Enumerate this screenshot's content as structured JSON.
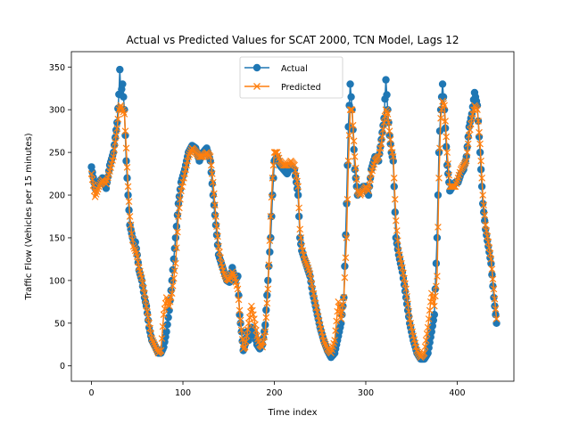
{
  "chart_data": {
    "type": "line",
    "title": "Actual vs Predicted Values for SCAT 2000, TCN Model, Lags 12",
    "xlabel": "Time index",
    "ylabel": "Traffic Flow (Vehicles per 15 minutes)",
    "xlim": [
      -22,
      462
    ],
    "ylim": [
      -18,
      368
    ],
    "xticks": [
      0,
      100,
      200,
      300,
      400
    ],
    "yticks": [
      0,
      50,
      100,
      150,
      200,
      250,
      300,
      350
    ],
    "grid": false,
    "legend_position": "top-center",
    "series": [
      {
        "name": "Actual",
        "color": "#1f77b4",
        "marker": "circle",
        "keyframes": [
          [
            0,
            233
          ],
          [
            4,
            208
          ],
          [
            8,
            215
          ],
          [
            12,
            220
          ],
          [
            16,
            208
          ],
          [
            20,
            235
          ],
          [
            24,
            250
          ],
          [
            28,
            285
          ],
          [
            30,
            318
          ],
          [
            31,
            347
          ],
          [
            32,
            318
          ],
          [
            34,
            330
          ],
          [
            36,
            300
          ],
          [
            38,
            240
          ],
          [
            40,
            200
          ],
          [
            42,
            165
          ],
          [
            44,
            155
          ],
          [
            46,
            145
          ],
          [
            48,
            145
          ],
          [
            50,
            130
          ],
          [
            52,
            112
          ],
          [
            55,
            100
          ],
          [
            58,
            80
          ],
          [
            60,
            70
          ],
          [
            63,
            45
          ],
          [
            66,
            30
          ],
          [
            70,
            22
          ],
          [
            73,
            15
          ],
          [
            76,
            15
          ],
          [
            79,
            22
          ],
          [
            82,
            40
          ],
          [
            85,
            65
          ],
          [
            88,
            100
          ],
          [
            92,
            150
          ],
          [
            95,
            190
          ],
          [
            98,
            215
          ],
          [
            102,
            230
          ],
          [
            106,
            250
          ],
          [
            110,
            258
          ],
          [
            114,
            255
          ],
          [
            118,
            240
          ],
          [
            122,
            250
          ],
          [
            126,
            255
          ],
          [
            130,
            240
          ],
          [
            133,
            200
          ],
          [
            136,
            165
          ],
          [
            139,
            130
          ],
          [
            142,
            120
          ],
          [
            145,
            110
          ],
          [
            148,
            100
          ],
          [
            151,
            98
          ],
          [
            154,
            115
          ],
          [
            157,
            100
          ],
          [
            160,
            105
          ],
          [
            162,
            60
          ],
          [
            164,
            40
          ],
          [
            166,
            18
          ],
          [
            168,
            25
          ],
          [
            170,
            40
          ],
          [
            172,
            30
          ],
          [
            175,
            45
          ],
          [
            178,
            40
          ],
          [
            181,
            25
          ],
          [
            184,
            20
          ],
          [
            187,
            25
          ],
          [
            190,
            48
          ],
          [
            193,
            100
          ],
          [
            196,
            150
          ],
          [
            198,
            200
          ],
          [
            200,
            240
          ],
          [
            203,
            245
          ],
          [
            206,
            235
          ],
          [
            210,
            230
          ],
          [
            214,
            225
          ],
          [
            218,
            235
          ],
          [
            222,
            230
          ],
          [
            226,
            200
          ],
          [
            228,
            150
          ],
          [
            230,
            135
          ],
          [
            233,
            125
          ],
          [
            236,
            115
          ],
          [
            239,
            105
          ],
          [
            242,
            85
          ],
          [
            246,
            65
          ],
          [
            250,
            45
          ],
          [
            254,
            30
          ],
          [
            258,
            18
          ],
          [
            262,
            10
          ],
          [
            266,
            15
          ],
          [
            270,
            35
          ],
          [
            273,
            50
          ],
          [
            276,
            80
          ],
          [
            279,
            190
          ],
          [
            281,
            280
          ],
          [
            283,
            330
          ],
          [
            285,
            300
          ],
          [
            288,
            230
          ],
          [
            291,
            200
          ],
          [
            294,
            205
          ],
          [
            297,
            210
          ],
          [
            300,
            210
          ],
          [
            303,
            200
          ],
          [
            306,
            230
          ],
          [
            310,
            245
          ],
          [
            314,
            240
          ],
          [
            317,
            265
          ],
          [
            320,
            290
          ],
          [
            322,
            335
          ],
          [
            324,
            300
          ],
          [
            326,
            270
          ],
          [
            328,
            250
          ],
          [
            330,
            240
          ],
          [
            333,
            150
          ],
          [
            336,
            130
          ],
          [
            340,
            110
          ],
          [
            344,
            80
          ],
          [
            348,
            50
          ],
          [
            352,
            30
          ],
          [
            356,
            15
          ],
          [
            360,
            8
          ],
          [
            364,
            8
          ],
          [
            368,
            15
          ],
          [
            372,
            40
          ],
          [
            375,
            60
          ],
          [
            378,
            150
          ],
          [
            380,
            250
          ],
          [
            382,
            300
          ],
          [
            384,
            330
          ],
          [
            386,
            300
          ],
          [
            389,
            235
          ],
          [
            392,
            205
          ],
          [
            395,
            210
          ],
          [
            398,
            215
          ],
          [
            401,
            215
          ],
          [
            404,
            225
          ],
          [
            407,
            230
          ],
          [
            410,
            245
          ],
          [
            413,
            280
          ],
          [
            416,
            295
          ],
          [
            419,
            320
          ],
          [
            422,
            305
          ],
          [
            425,
            250
          ],
          [
            428,
            190
          ],
          [
            431,
            160
          ],
          [
            434,
            140
          ],
          [
            437,
            120
          ],
          [
            440,
            80
          ],
          [
            443,
            50
          ]
        ]
      },
      {
        "name": "Predicted",
        "color": "#ff7f0e",
        "marker": "x",
        "keyframes": [
          [
            0,
            225
          ],
          [
            4,
            198
          ],
          [
            8,
            210
          ],
          [
            12,
            218
          ],
          [
            16,
            213
          ],
          [
            20,
            228
          ],
          [
            24,
            245
          ],
          [
            28,
            278
          ],
          [
            30,
            300
          ],
          [
            32,
            305
          ],
          [
            34,
            300
          ],
          [
            36,
            295
          ],
          [
            38,
            255
          ],
          [
            40,
            210
          ],
          [
            42,
            175
          ],
          [
            44,
            155
          ],
          [
            46,
            140
          ],
          [
            48,
            135
          ],
          [
            50,
            128
          ],
          [
            52,
            115
          ],
          [
            55,
            103
          ],
          [
            58,
            85
          ],
          [
            60,
            70
          ],
          [
            63,
            50
          ],
          [
            66,
            32
          ],
          [
            70,
            22
          ],
          [
            73,
            15
          ],
          [
            76,
            18
          ],
          [
            79,
            60
          ],
          [
            82,
            80
          ],
          [
            85,
            70
          ],
          [
            88,
            85
          ],
          [
            92,
            120
          ],
          [
            95,
            175
          ],
          [
            98,
            205
          ],
          [
            102,
            225
          ],
          [
            106,
            245
          ],
          [
            110,
            255
          ],
          [
            114,
            250
          ],
          [
            118,
            245
          ],
          [
            122,
            245
          ],
          [
            126,
            250
          ],
          [
            130,
            245
          ],
          [
            133,
            215
          ],
          [
            136,
            175
          ],
          [
            139,
            140
          ],
          [
            142,
            120
          ],
          [
            145,
            108
          ],
          [
            148,
            102
          ],
          [
            151,
            100
          ],
          [
            154,
            110
          ],
          [
            157,
            102
          ],
          [
            160,
            90
          ],
          [
            162,
            65
          ],
          [
            164,
            42
          ],
          [
            166,
            20
          ],
          [
            168,
            22
          ],
          [
            170,
            35
          ],
          [
            172,
            50
          ],
          [
            175,
            70
          ],
          [
            178,
            55
          ],
          [
            181,
            35
          ],
          [
            184,
            25
          ],
          [
            187,
            22
          ],
          [
            190,
            40
          ],
          [
            193,
            90
          ],
          [
            196,
            175
          ],
          [
            198,
            220
          ],
          [
            200,
            250
          ],
          [
            203,
            250
          ],
          [
            206,
            240
          ],
          [
            210,
            235
          ],
          [
            214,
            235
          ],
          [
            218,
            240
          ],
          [
            222,
            235
          ],
          [
            226,
            210
          ],
          [
            228,
            160
          ],
          [
            230,
            140
          ],
          [
            233,
            125
          ],
          [
            236,
            118
          ],
          [
            239,
            108
          ],
          [
            242,
            90
          ],
          [
            246,
            68
          ],
          [
            250,
            48
          ],
          [
            254,
            30
          ],
          [
            258,
            20
          ],
          [
            262,
            15
          ],
          [
            266,
            30
          ],
          [
            270,
            75
          ],
          [
            273,
            55
          ],
          [
            276,
            80
          ],
          [
            279,
            150
          ],
          [
            281,
            240
          ],
          [
            283,
            300
          ],
          [
            285,
            300
          ],
          [
            288,
            245
          ],
          [
            291,
            205
          ],
          [
            294,
            200
          ],
          [
            297,
            205
          ],
          [
            300,
            210
          ],
          [
            303,
            205
          ],
          [
            306,
            225
          ],
          [
            310,
            240
          ],
          [
            314,
            245
          ],
          [
            317,
            260
          ],
          [
            320,
            285
          ],
          [
            322,
            300
          ],
          [
            324,
            295
          ],
          [
            326,
            275
          ],
          [
            328,
            255
          ],
          [
            330,
            245
          ],
          [
            333,
            170
          ],
          [
            336,
            135
          ],
          [
            340,
            115
          ],
          [
            344,
            90
          ],
          [
            348,
            55
          ],
          [
            352,
            35
          ],
          [
            356,
            18
          ],
          [
            360,
            10
          ],
          [
            364,
            15
          ],
          [
            368,
            45
          ],
          [
            372,
            85
          ],
          [
            375,
            70
          ],
          [
            378,
            105
          ],
          [
            380,
            220
          ],
          [
            382,
            290
          ],
          [
            384,
            310
          ],
          [
            386,
            305
          ],
          [
            389,
            250
          ],
          [
            392,
            210
          ],
          [
            395,
            210
          ],
          [
            398,
            210
          ],
          [
            401,
            220
          ],
          [
            404,
            230
          ],
          [
            407,
            235
          ],
          [
            410,
            240
          ],
          [
            413,
            270
          ],
          [
            416,
            290
          ],
          [
            419,
            305
          ],
          [
            422,
            300
          ],
          [
            425,
            260
          ],
          [
            428,
            200
          ],
          [
            431,
            165
          ],
          [
            434,
            145
          ],
          [
            437,
            125
          ],
          [
            440,
            90
          ],
          [
            443,
            55
          ]
        ]
      }
    ]
  }
}
